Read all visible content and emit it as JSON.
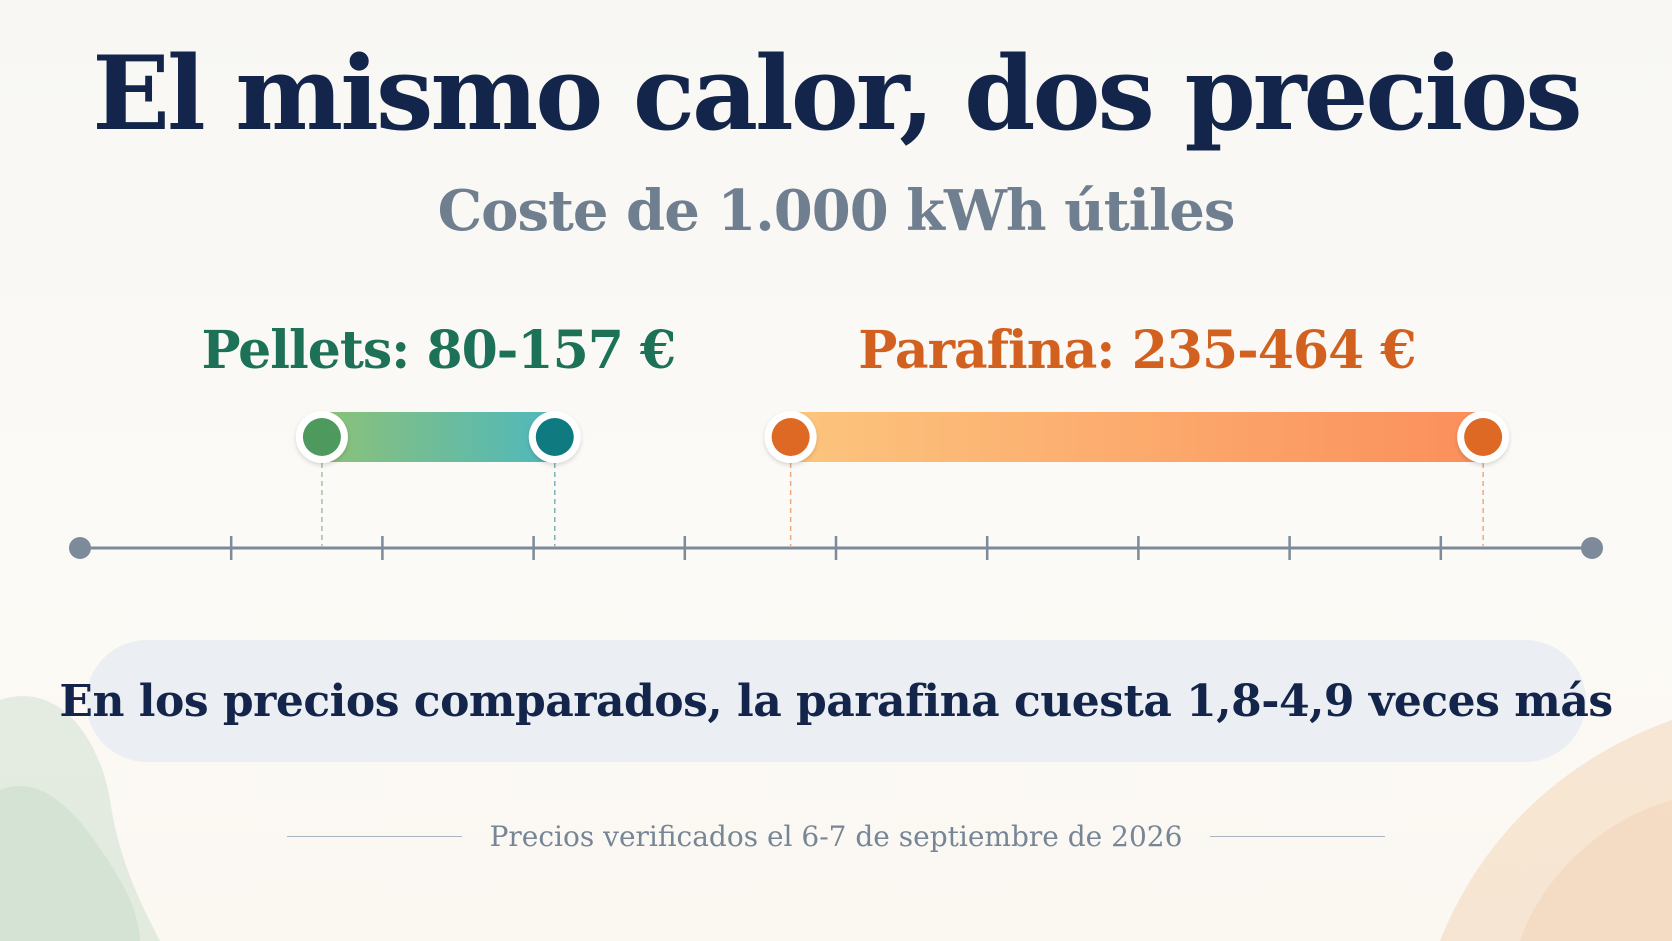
{
  "title": "El mismo calor, dos precios",
  "subtitle": "Coste de 1.000 kWh útiles",
  "summary": "En los precios comparados, la parafina cuesta 1,8-4,9 veces más",
  "footer": "Precios verificados el 6-7 de septiembre de 2026",
  "chart_data": {
    "type": "range-bar",
    "title": "El mismo calor, dos precios",
    "subtitle": "Coste de 1.000 kWh útiles",
    "unit": "€",
    "xlim": [
      0,
      500
    ],
    "grid": false,
    "axis_tick_labels_shown": false,
    "series": [
      {
        "name": "Pellets",
        "label": "Pellets: 80-157 €",
        "min": 80,
        "max": 157,
        "color_start": "#8cc178",
        "color_end": "#4fb8bc",
        "marker_min_color": "#4e9a5e",
        "marker_max_color": "#0f7a80",
        "label_color": "#1c7157"
      },
      {
        "name": "Parafina",
        "label": "Parafina: 235-464 €",
        "min": 235,
        "max": 464,
        "color_start": "#fcc57e",
        "color_end": "#fb8f5c",
        "marker_min_color": "#dd6925",
        "marker_max_color": "#dd6925",
        "label_color": "#d2611f"
      }
    ],
    "annotation": "En los precios comparados, la parafina cuesta 1,8-4,9 veces más"
  },
  "colors": {
    "title": "#13254a",
    "subtitle": "#6f7f90",
    "axis": "#7c8a99",
    "summary_bg": "#ebeef2",
    "footer_text": "#778696"
  }
}
